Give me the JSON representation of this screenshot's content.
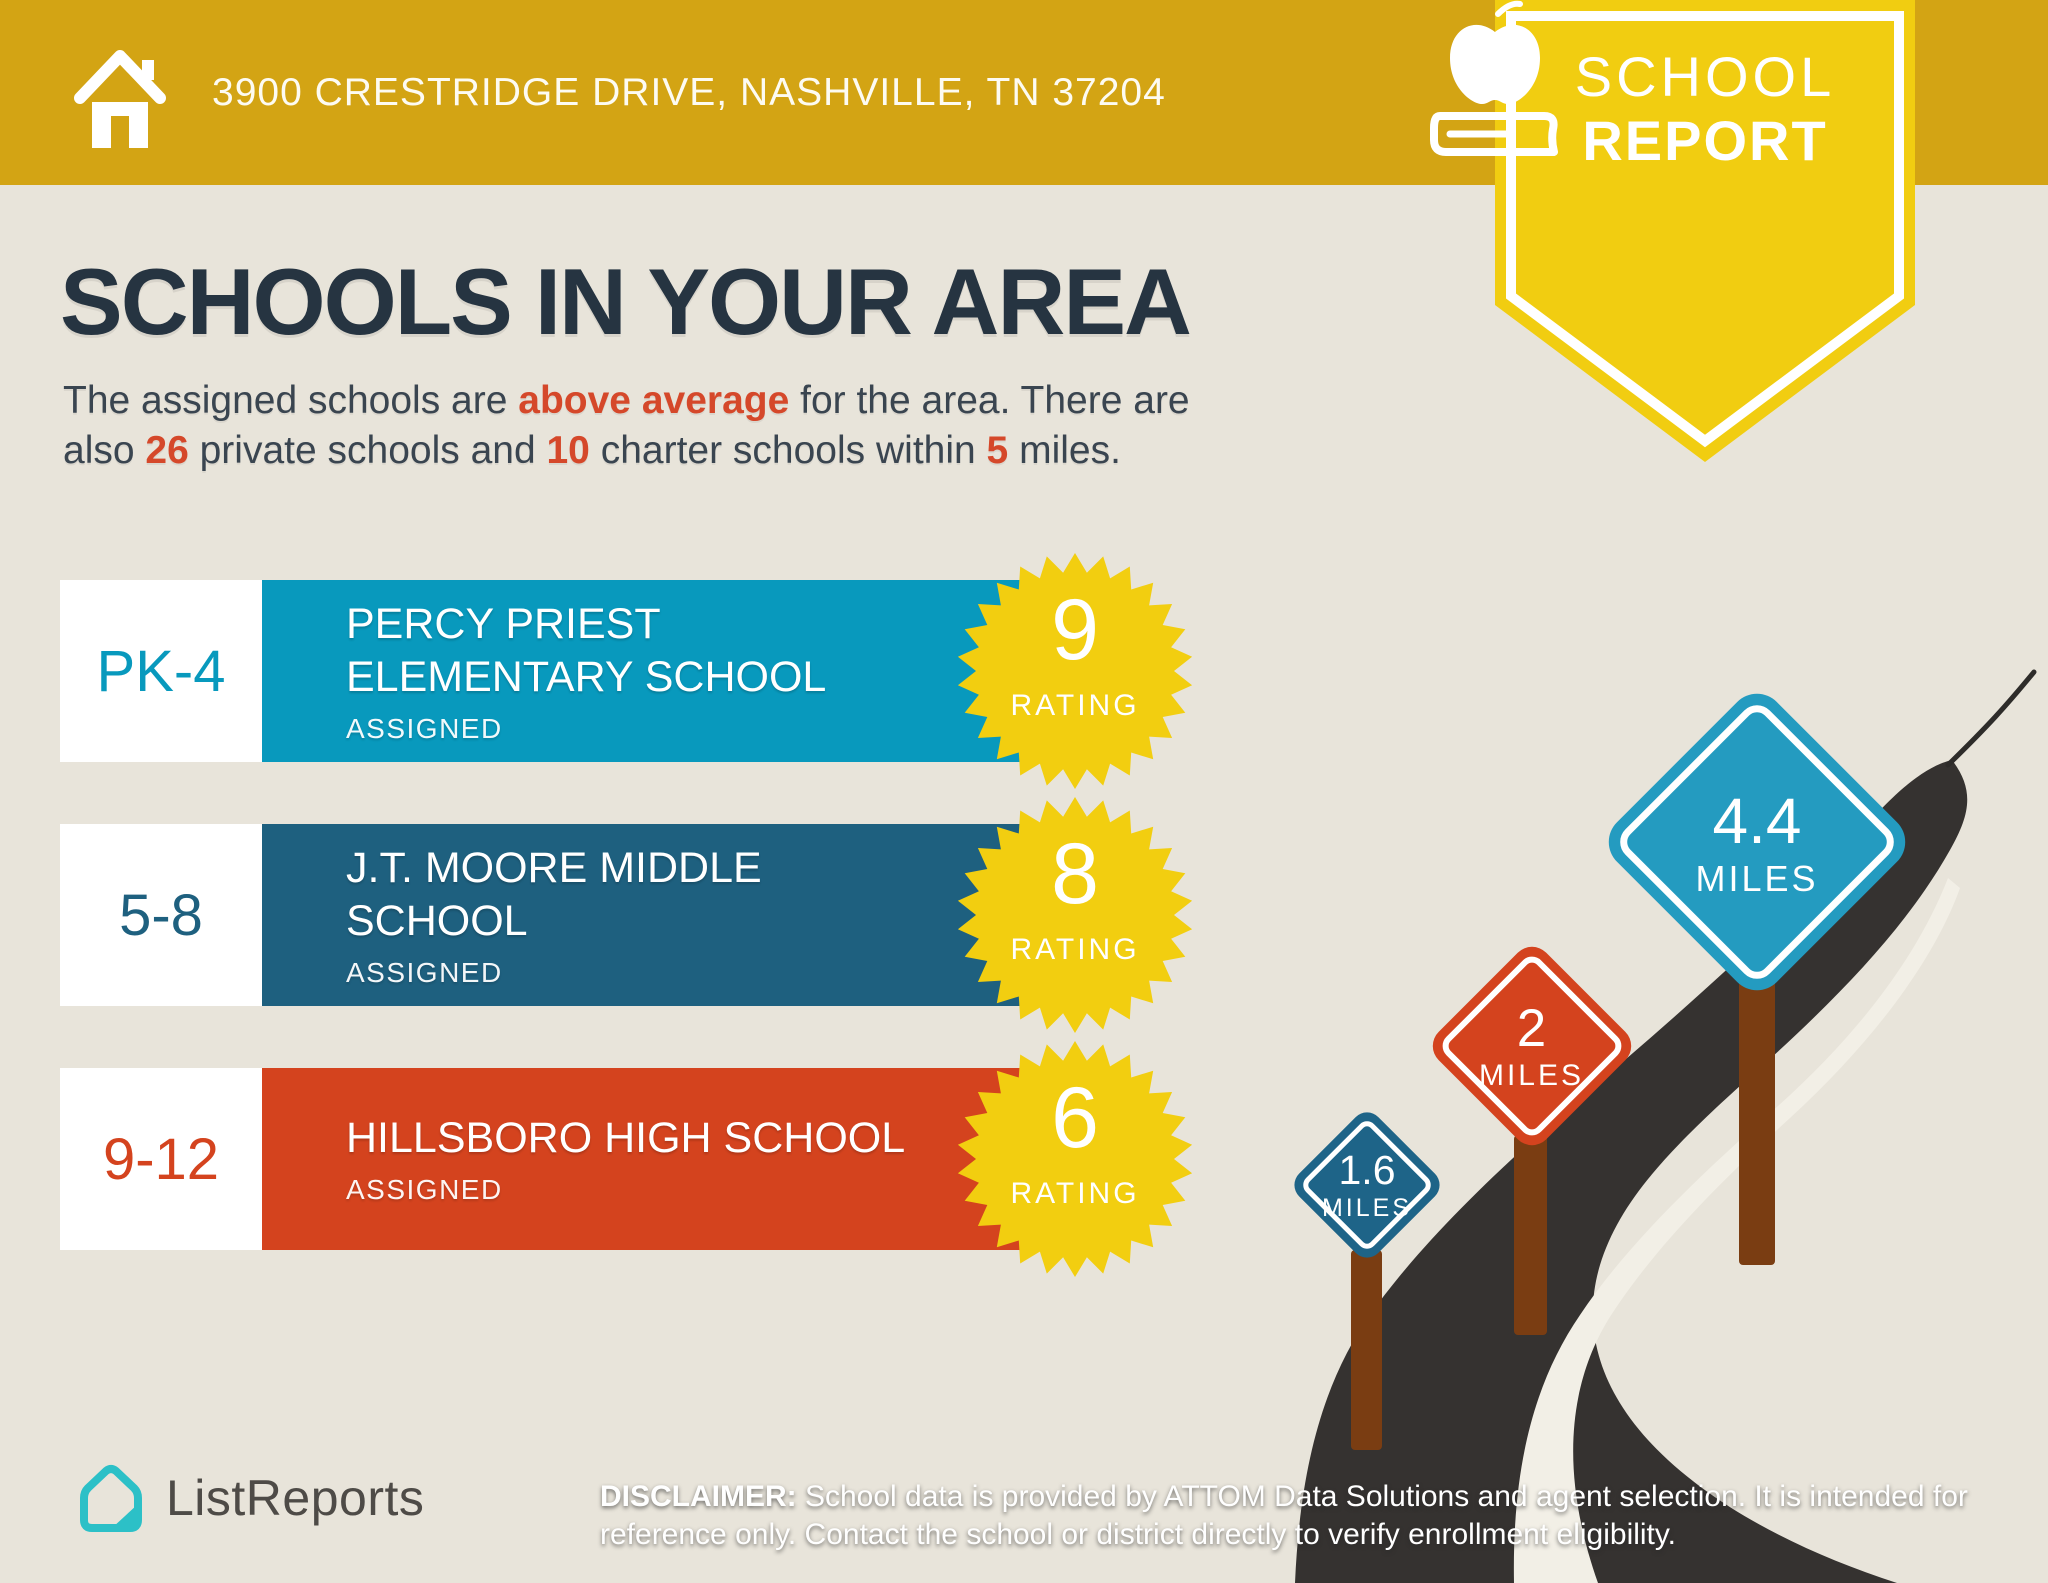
{
  "header": {
    "address": "3900 CRESTRIDGE DRIVE, NASHVILLE, TN 37204"
  },
  "badge": {
    "line1": "SCHOOL",
    "line2": "REPORT"
  },
  "title": "SCHOOLS IN YOUR AREA",
  "intro": {
    "line1": {
      "a": "The assigned schools are ",
      "b": "above average",
      "c": " for the area. There are"
    },
    "line2": {
      "a": "also ",
      "b": "26",
      "c": " private schools and ",
      "d": "10",
      "e": " charter schools within ",
      "f": "5",
      "g": " miles."
    }
  },
  "rating_label": "RATING",
  "schools": [
    {
      "grades": "PK-4",
      "name": "PERCY PRIEST ELEMENTARY SCHOOL",
      "status": "ASSIGNED",
      "rating": "9",
      "color": "#0899BD"
    },
    {
      "grades": "5-8",
      "name": "J.T. MOORE MIDDLE SCHOOL",
      "status": "ASSIGNED",
      "rating": "8",
      "color": "#1E607F"
    },
    {
      "grades": "9-12",
      "name": "HILLSBORO HIGH SCHOOL",
      "status": "ASSIGNED",
      "rating": "6",
      "color": "#D4431E"
    }
  ],
  "signs": [
    {
      "value": "1.6",
      "unit": "MILES",
      "color": "#1E6488"
    },
    {
      "value": "2",
      "unit": "MILES",
      "color": "#D4431E"
    },
    {
      "value": "4.4",
      "unit": "MILES",
      "color": "#249BC0"
    }
  ],
  "footer": {
    "brand": "ListReports",
    "disclaimer_label": "DISCLAIMER:",
    "disclaimer_line": " School data is provided by ATTOM Data Solutions and agent selection. It is intended for reference only. Contact the school or district directly to verify enrollment eligibility."
  },
  "colors": {
    "background": "#E8E4DA",
    "header_bar": "#D3A414",
    "badge_yellow": "#F1CD11",
    "starburst_yellow": "#F2CE10",
    "title_text": "#263441",
    "accent_red": "#D5482A",
    "road": "#353230",
    "road_line": "#F2EFE6",
    "post_brown": "#7A3D12",
    "brand_teal": "#2CC0C7"
  }
}
